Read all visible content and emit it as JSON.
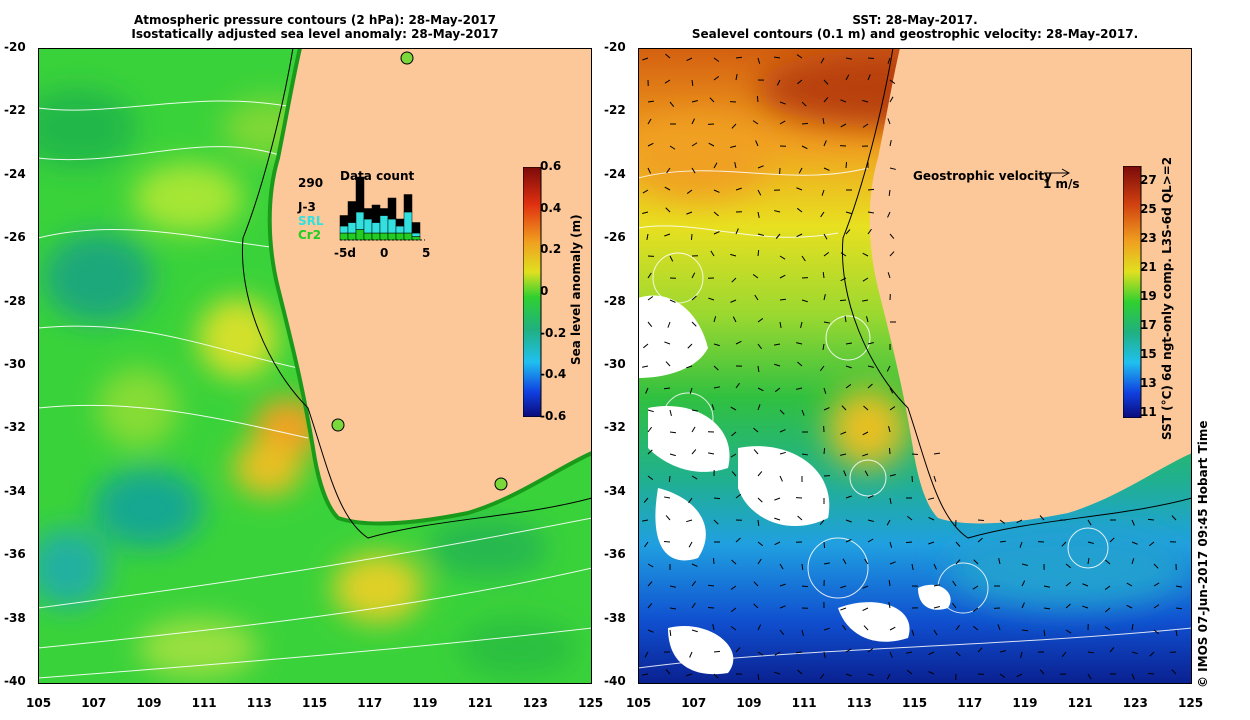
{
  "left_panel": {
    "title_line1": "Atmospheric pressure contours (2 hPa): 28-May-2017",
    "title_line2": "Isostatically adjusted sea level anomaly: 28-May-2017",
    "lon_ticks": [
      "105",
      "107",
      "109",
      "111",
      "113",
      "115",
      "117",
      "119",
      "121",
      "123",
      "125"
    ],
    "lat_ticks": [
      "-20",
      "-22",
      "-24",
      "-26",
      "-28",
      "-30",
      "-32",
      "-34",
      "-36",
      "-38",
      "-40"
    ],
    "colorbar": {
      "title": "Sea level anomaly (m)",
      "ticks": [
        "0.6",
        "0.4",
        "0.2",
        "0",
        "-0.2",
        "-0.4",
        "-0.6"
      ]
    },
    "data_count": {
      "title": "Data count",
      "total": "290",
      "legend": [
        {
          "name": "J-3",
          "color": "#000000"
        },
        {
          "name": "SRL",
          "color": "#33e0e0"
        },
        {
          "name": "Cr2",
          "color": "#22cc22"
        }
      ],
      "x_ticks": [
        "-5d",
        "0",
        "5"
      ],
      "bars": [
        {
          "day": -5,
          "cr2": 2,
          "srl": 2,
          "j3": 3
        },
        {
          "day": -4,
          "cr2": 2,
          "srl": 3,
          "j3": 6
        },
        {
          "day": -3,
          "cr2": 3,
          "srl": 5,
          "j3": 10
        },
        {
          "day": -2,
          "cr2": 2,
          "srl": 4,
          "j3": 3
        },
        {
          "day": -1,
          "cr2": 2,
          "srl": 3,
          "j3": 5
        },
        {
          "day": 0,
          "cr2": 2,
          "srl": 5,
          "j3": 2
        },
        {
          "day": 1,
          "cr2": 2,
          "srl": 4,
          "j3": 6
        },
        {
          "day": 2,
          "cr2": 2,
          "srl": 2,
          "j3": 2
        },
        {
          "day": 3,
          "cr2": 2,
          "srl": 6,
          "j3": 5
        },
        {
          "day": 4,
          "cr2": 1,
          "srl": 1,
          "j3": 3
        }
      ]
    }
  },
  "right_panel": {
    "title_line1": "SST: 28-May-2017.",
    "title_line2": "Sealevel contours (0.1 m) and geostrophic velocity: 28-May-2017.",
    "lon_ticks": [
      "105",
      "107",
      "109",
      "111",
      "113",
      "115",
      "117",
      "119",
      "121",
      "123",
      "125"
    ],
    "lat_ticks": [
      "-20",
      "-22",
      "-24",
      "-26",
      "-28",
      "-30",
      "-32",
      "-34",
      "-36",
      "-38",
      "-40"
    ],
    "velocity_legend": {
      "label": "Geostrophic velocity",
      "scale": "1 m/s"
    },
    "colorbar": {
      "title": "SST (°C) 6d ngt-only comp. L3S-6d QL>=2",
      "ticks": [
        "27",
        "25",
        "23",
        "21",
        "19",
        "17",
        "15",
        "13",
        "11"
      ]
    },
    "side_note": "© IMOS 07-Jun-2017 09:45 Hobart Time"
  },
  "colors": {
    "land": "#fcc89a",
    "sla_base": "#33d633",
    "coast": "#000000",
    "contour": "#ffffff"
  }
}
